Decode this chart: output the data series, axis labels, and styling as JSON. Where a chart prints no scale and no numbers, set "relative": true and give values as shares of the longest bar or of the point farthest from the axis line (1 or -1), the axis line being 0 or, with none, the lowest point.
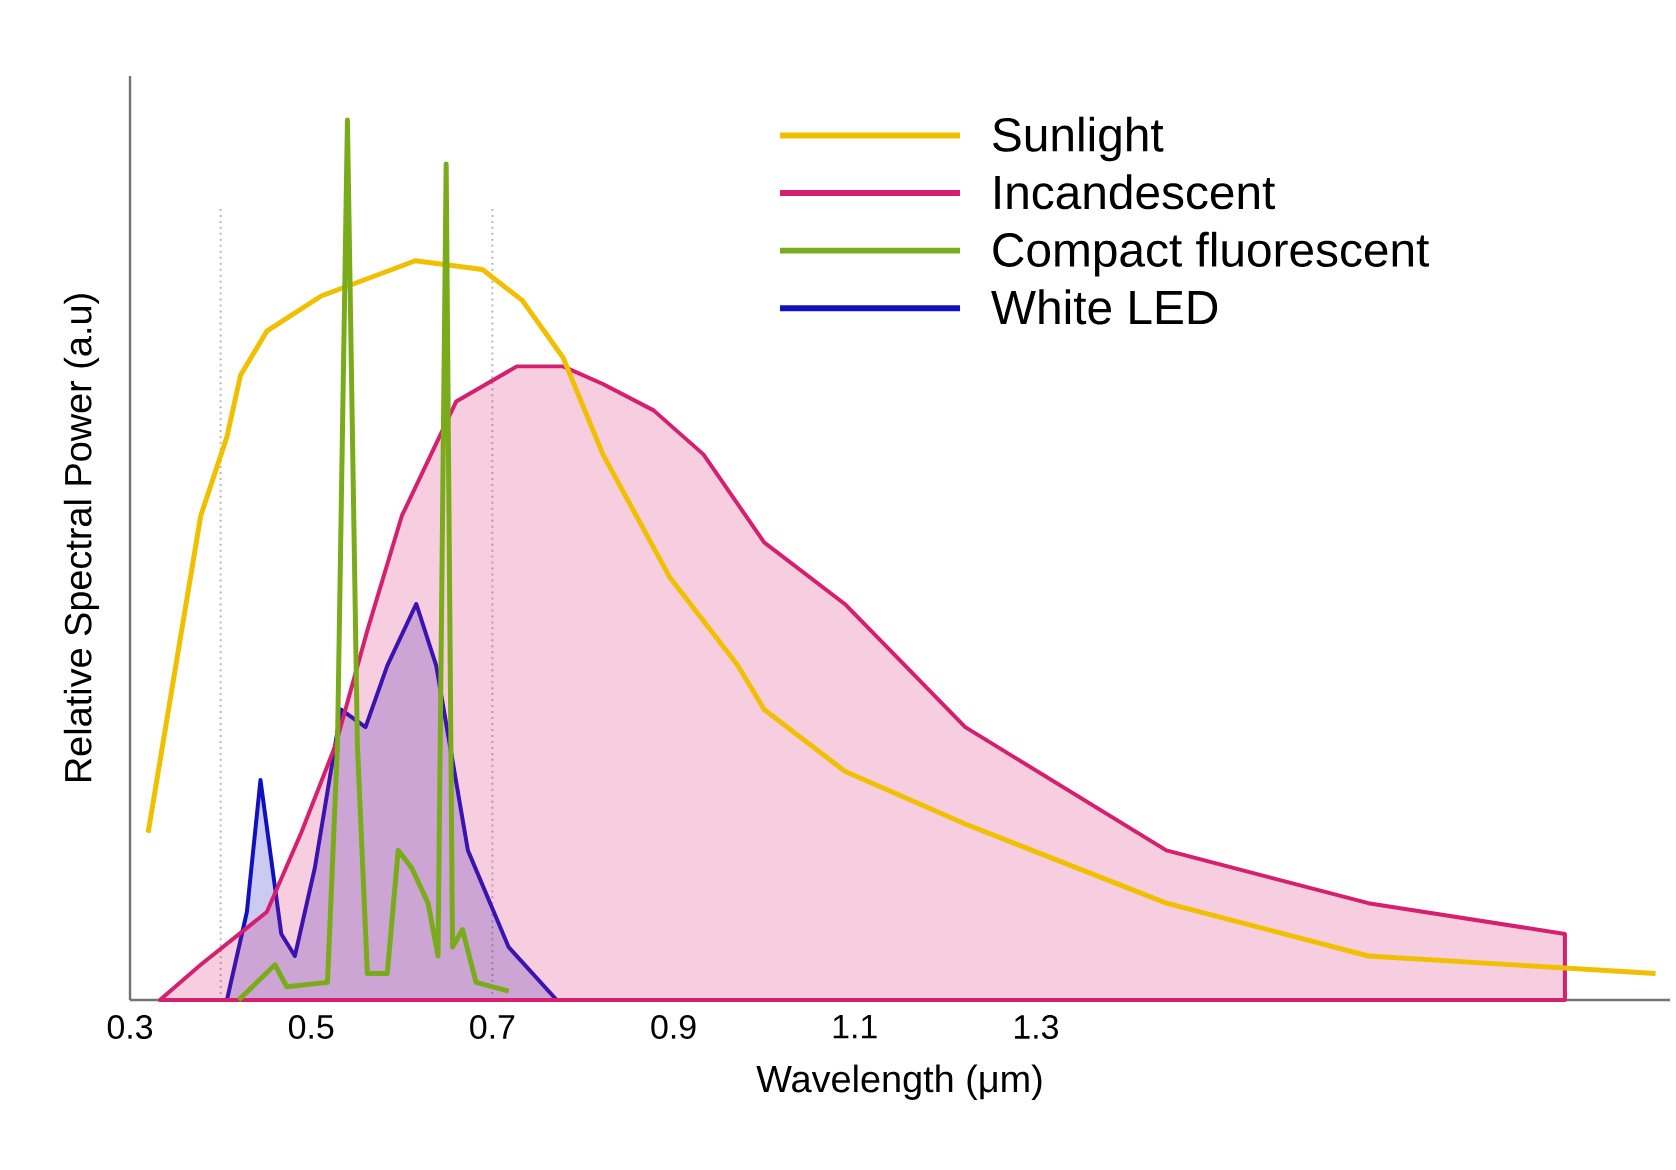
{
  "chart_data": {
    "type": "line",
    "relative": true,
    "xlabel": "Wavelength (μm)",
    "ylabel": "Relative Spectral Power (a.u)",
    "xlim": [
      0.3,
      2.0
    ],
    "xticks": [
      0.3,
      0.5,
      0.7,
      0.9,
      1.1,
      1.3
    ],
    "legend": "top right",
    "marker": "none",
    "line_style": "solid",
    "grid": false,
    "ref_lines": [
      {
        "axis": "x",
        "value": 0.4,
        "color": "#b8b8b8",
        "line_style": "dotted"
      },
      {
        "axis": "x",
        "value": 0.7,
        "color": "#b8b8b8",
        "line_style": "dotted"
      }
    ],
    "series": [
      {
        "name": "Sunlight",
        "color": "#f0c000",
        "x": [
          0.32,
          0.357,
          0.378,
          0.407,
          0.422,
          0.451,
          0.511,
          0.615,
          0.689,
          0.733,
          0.778,
          0.822,
          0.896,
          0.971,
          1.0,
          1.089,
          1.222,
          1.444,
          1.667,
          1.984
        ],
        "values": [
          0.19,
          0.42,
          0.55,
          0.64,
          0.71,
          0.76,
          0.8,
          0.84,
          0.83,
          0.795,
          0.73,
          0.62,
          0.48,
          0.38,
          0.33,
          0.26,
          0.2,
          0.11,
          0.05,
          0.03
        ]
      },
      {
        "name": "Incandescent",
        "type": "area",
        "color": "#d4206e",
        "x": [
          0.333,
          0.378,
          0.451,
          0.489,
          0.527,
          0.562,
          0.6,
          0.66,
          0.727,
          0.778,
          0.822,
          0.878,
          0.933,
          1.0,
          1.089,
          1.222,
          1.444,
          1.667,
          1.884
        ],
        "values": [
          0,
          0.04,
          0.1,
          0.19,
          0.29,
          0.42,
          0.55,
          0.68,
          0.72,
          0.72,
          0.7,
          0.67,
          0.62,
          0.52,
          0.45,
          0.31,
          0.17,
          0.11,
          0.075
        ]
      },
      {
        "name": "Compact fluorescent",
        "color": "#7aab1a",
        "x": [
          0.42,
          0.46,
          0.473,
          0.518,
          0.529,
          0.54,
          0.551,
          0.562,
          0.584,
          0.596,
          0.611,
          0.629,
          0.64,
          0.649,
          0.656,
          0.667,
          0.682,
          0.718
        ],
        "values": [
          0,
          0.04,
          0.015,
          0.02,
          0.29,
          1.0,
          0.29,
          0.03,
          0.03,
          0.17,
          0.15,
          0.11,
          0.05,
          0.95,
          0.06,
          0.08,
          0.02,
          0.01
        ]
      },
      {
        "name": "White LED",
        "type": "area",
        "color": "#1010c0",
        "x": [
          0.407,
          0.429,
          0.444,
          0.467,
          0.482,
          0.504,
          0.533,
          0.56,
          0.584,
          0.616,
          0.638,
          0.673,
          0.718,
          0.771
        ],
        "values": [
          0,
          0.1,
          0.25,
          0.075,
          0.05,
          0.15,
          0.33,
          0.31,
          0.38,
          0.45,
          0.38,
          0.17,
          0.06,
          0
        ]
      }
    ]
  }
}
